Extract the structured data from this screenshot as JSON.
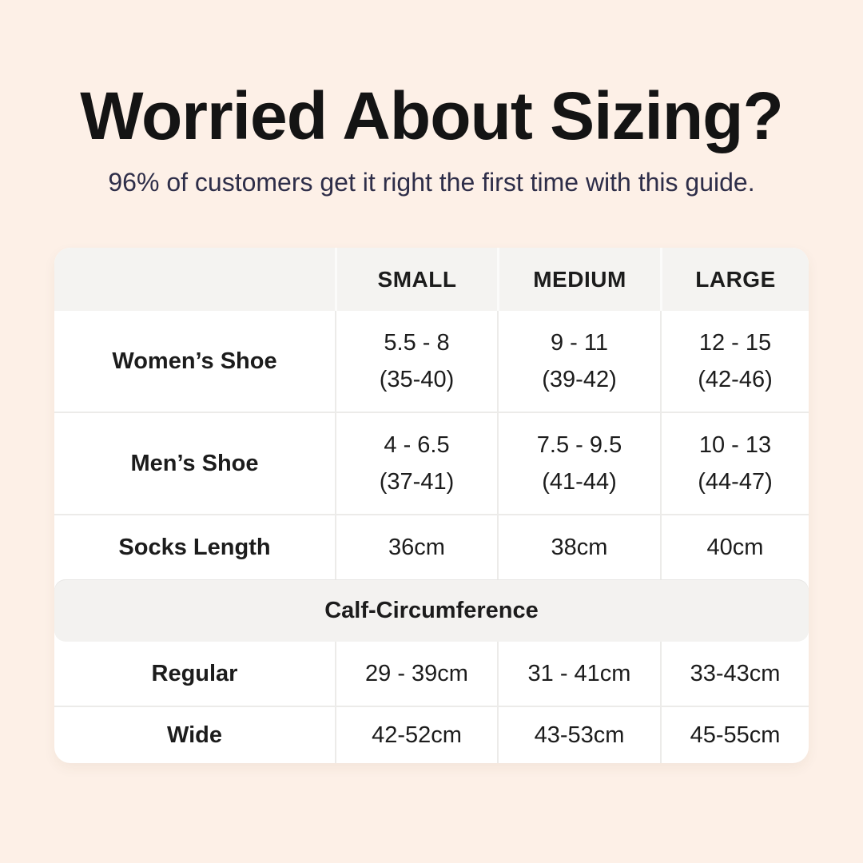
{
  "page": {
    "title": "Worried About Sizing?",
    "subtitle": "96% of customers get it right the first time with this guide."
  },
  "colors": {
    "background": "#fdf0e7",
    "table_background": "#ffffff",
    "band_background": "#f4f3f1",
    "divider": "#ecebe9",
    "title_text": "#141414",
    "subtitle_text": "#2e2e49",
    "table_text": "#1c1c1c"
  },
  "sizing_table": {
    "columns": [
      "",
      "SMALL",
      "MEDIUM",
      "LARGE"
    ],
    "rows": [
      {
        "label": "Women’s Shoe",
        "cells": [
          [
            "5.5 - 8",
            "(35-40)"
          ],
          [
            "9 - 11",
            "(39-42)"
          ],
          [
            "12 - 15",
            "(42-46)"
          ]
        ]
      },
      {
        "label": "Men’s Shoe",
        "cells": [
          [
            "4 - 6.5",
            "(37-41)"
          ],
          [
            "7.5 - 9.5",
            "(41-44)"
          ],
          [
            "10 - 13",
            "(44-47)"
          ]
        ]
      },
      {
        "label": "Socks Length",
        "cells": [
          [
            "36cm"
          ],
          [
            "38cm"
          ],
          [
            "40cm"
          ]
        ]
      }
    ],
    "section_header": "Calf-Circumference",
    "calf_rows": [
      {
        "label": "Regular",
        "cells": [
          [
            "29 - 39cm"
          ],
          [
            "31 - 41cm"
          ],
          [
            "33-43cm"
          ]
        ]
      },
      {
        "label": "Wide",
        "cells": [
          [
            "42-52cm"
          ],
          [
            "43-53cm"
          ],
          [
            "45-55cm"
          ]
        ]
      }
    ]
  }
}
